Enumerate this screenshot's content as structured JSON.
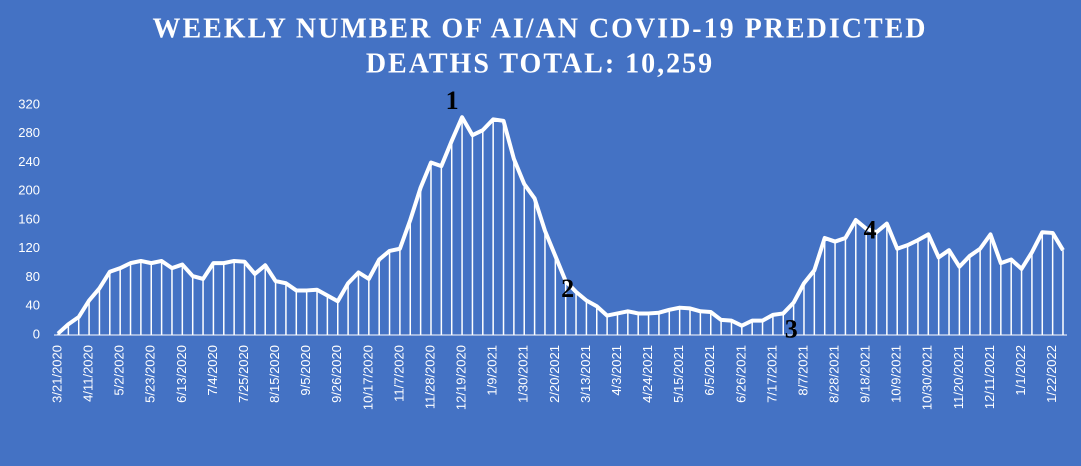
{
  "chart_data": {
    "type": "line",
    "title": [
      "WEEKLY NUMBER OF AI/AN COVID-19 PREDICTED",
      "DEATHS TOTAL: 10,259"
    ],
    "annotations": [
      "1",
      "2",
      "3",
      "4"
    ],
    "categories": [
      "3/21/2020",
      null,
      null,
      "4/11/2020",
      null,
      null,
      "5/2/2020",
      null,
      null,
      "5/23/2020",
      null,
      null,
      "6/13/2020",
      null,
      null,
      "7/4/2020",
      null,
      null,
      "7/25/2020",
      null,
      null,
      "8/15/2020",
      null,
      null,
      "9/5/2020",
      null,
      null,
      "9/26/2020",
      null,
      null,
      "10/17/2020",
      null,
      null,
      "11/7/2020",
      null,
      null,
      "11/28/2020",
      null,
      null,
      "12/19/2020",
      null,
      null,
      "1/9/2021",
      null,
      null,
      "1/30/2021",
      null,
      null,
      "2/20/2021",
      null,
      null,
      "3/13/2021",
      null,
      null,
      "4/3/2021",
      null,
      null,
      "4/24/2021",
      null,
      null,
      "5/15/2021",
      null,
      null,
      "6/5/2021",
      null,
      null,
      "6/26/2021",
      null,
      null,
      "7/17/2021",
      null,
      null,
      "8/7/2021",
      null,
      null,
      "8/28/2021",
      null,
      null,
      "9/18/2021",
      null,
      null,
      "10/9/2021",
      null,
      null,
      "10/30/2021",
      null,
      null,
      "11/20/2021",
      null,
      null,
      "12/11/2021",
      null,
      null,
      "1/1/2022",
      null,
      null,
      "1/22/2022",
      null
    ],
    "values": [
      2,
      15,
      25,
      48,
      65,
      88,
      93,
      100,
      103,
      100,
      103,
      93,
      98,
      82,
      78,
      100,
      100,
      103,
      102,
      85,
      97,
      75,
      72,
      62,
      62,
      63,
      55,
      47,
      72,
      87,
      78,
      105,
      117,
      120,
      160,
      205,
      240,
      235,
      270,
      303,
      278,
      285,
      300,
      298,
      245,
      210,
      190,
      145,
      110,
      75,
      60,
      48,
      40,
      27,
      30,
      33,
      30,
      30,
      31,
      35,
      38,
      37,
      33,
      32,
      21,
      20,
      13,
      20,
      20,
      28,
      30,
      45,
      72,
      90,
      135,
      130,
      135,
      160,
      148,
      143,
      155,
      120,
      125,
      132,
      140,
      108,
      118,
      95,
      110,
      120,
      140,
      100,
      105,
      92,
      115,
      143,
      142,
      118
    ],
    "color": "#ffffff",
    "ylim": [
      0,
      320
    ],
    "yticks": [
      0,
      40,
      80,
      120,
      160,
      200,
      240,
      280,
      320
    ],
    "grid": false
  }
}
